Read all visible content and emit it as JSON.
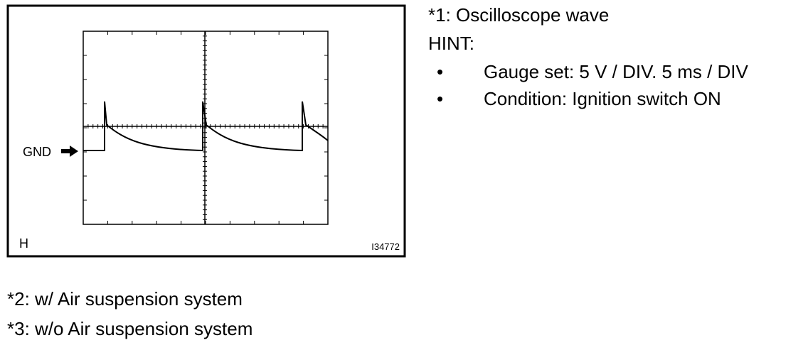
{
  "figure": {
    "gnd_label": "GND",
    "corner_label": "H",
    "figure_id": "I34772"
  },
  "notes": {
    "note1": "*1: Oscilloscope wave",
    "hint_title": "HINT:",
    "hints": [
      "Gauge set: 5 V / DIV. 5 ms / DIV",
      "Condition: Ignition switch ON"
    ]
  },
  "footnotes": [
    "*2: w/ Air suspension system",
    "*3: w/o Air suspension system"
  ]
}
